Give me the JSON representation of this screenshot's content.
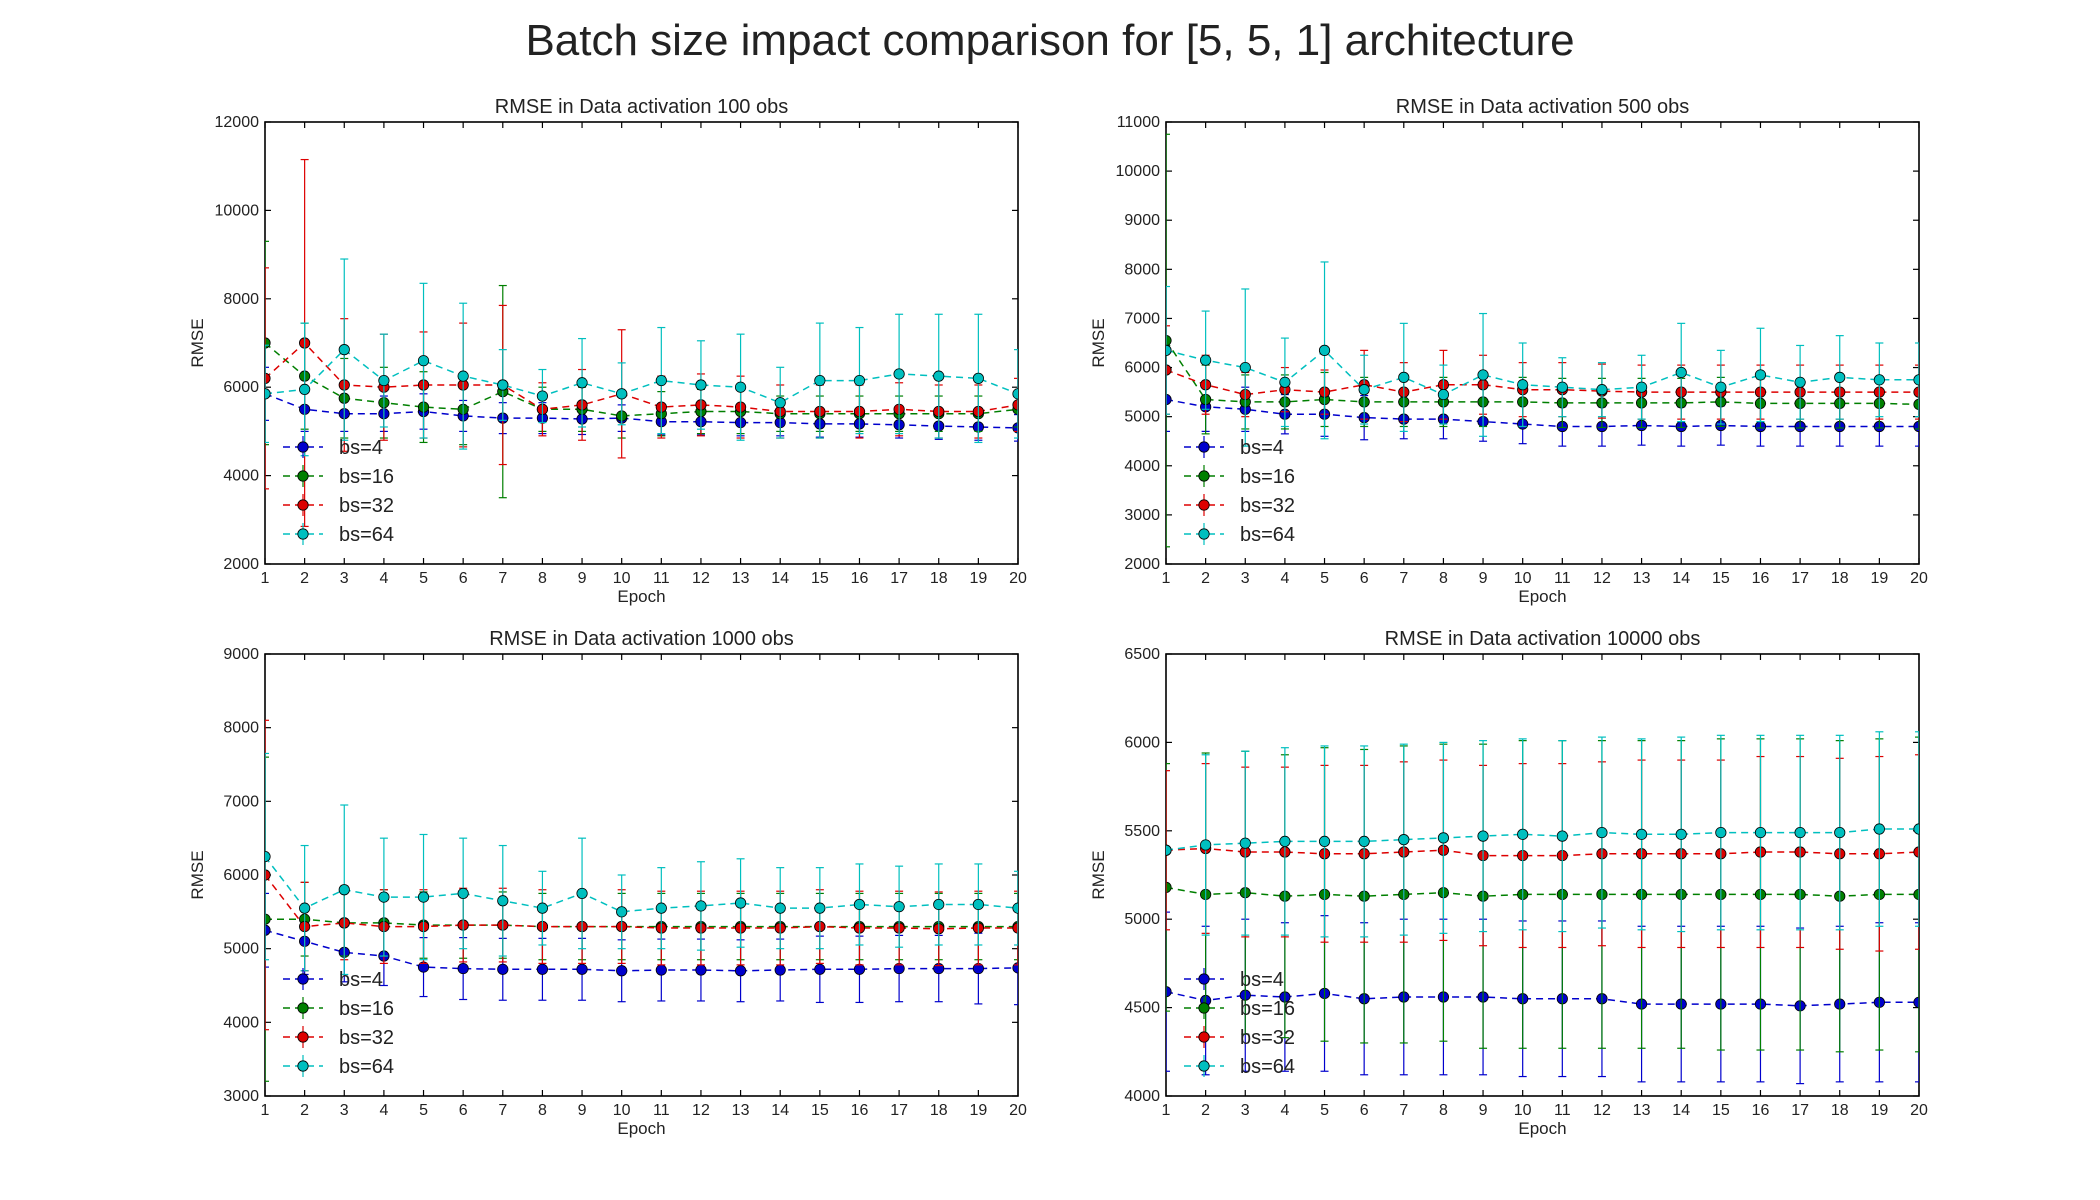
{
  "figure": {
    "title": "Batch size impact comparison for [5, 5, 1] architecture"
  },
  "series_styles": [
    {
      "name": "bs=4",
      "color": "#0000cc"
    },
    {
      "name": "bs=16",
      "color": "#007f00"
    },
    {
      "name": "bs=32",
      "color": "#dd0000"
    },
    {
      "name": "bs=64",
      "color": "#00bfbf"
    }
  ],
  "chart_data": [
    {
      "type": "line",
      "title": "RMSE in Data activation 100 obs",
      "xlabel": "Epoch",
      "ylabel": "RMSE",
      "x": [
        1,
        2,
        3,
        4,
        5,
        6,
        7,
        8,
        9,
        10,
        11,
        12,
        13,
        14,
        15,
        16,
        17,
        18,
        19,
        20
      ],
      "xlim": [
        1,
        20
      ],
      "ylim": [
        2000,
        12000
      ],
      "yticks": [
        2000,
        4000,
        6000,
        8000,
        10000,
        12000
      ],
      "grid": false,
      "legend_position": "lower-left",
      "series": [
        {
          "name": "bs=4",
          "values": [
            5850,
            5500,
            5400,
            5400,
            5450,
            5350,
            5300,
            5300,
            5280,
            5300,
            5220,
            5220,
            5200,
            5200,
            5170,
            5170,
            5150,
            5120,
            5100,
            5080
          ],
          "errors": [
            600,
            500,
            400,
            400,
            400,
            350,
            350,
            350,
            350,
            300,
            300,
            300,
            300,
            300,
            300,
            300,
            300,
            300,
            300,
            300
          ]
        },
        {
          "name": "bs=16",
          "values": [
            7000,
            6250,
            5750,
            5650,
            5550,
            5500,
            5900,
            5500,
            5500,
            5350,
            5400,
            5450,
            5450,
            5400,
            5400,
            5400,
            5400,
            5400,
            5400,
            5500
          ],
          "errors": [
            2300,
            1200,
            900,
            800,
            800,
            800,
            2400,
            500,
            500,
            500,
            500,
            500,
            500,
            400,
            400,
            400,
            400,
            400,
            400,
            400
          ]
        },
        {
          "name": "bs=32",
          "values": [
            6200,
            7000,
            6050,
            6000,
            6050,
            6050,
            6050,
            5500,
            5600,
            5850,
            5550,
            5600,
            5550,
            5450,
            5450,
            5450,
            5500,
            5450,
            5450,
            5600
          ],
          "errors": [
            2500,
            4150,
            1500,
            1200,
            1200,
            1400,
            1800,
            600,
            800,
            1450,
            700,
            700,
            700,
            600,
            600,
            600,
            600,
            600,
            600,
            600
          ]
        },
        {
          "name": "bs=64",
          "values": [
            5850,
            5950,
            6850,
            6150,
            6600,
            6250,
            6050,
            5800,
            6100,
            5850,
            6150,
            6050,
            6000,
            5650,
            6150,
            6150,
            6300,
            6250,
            6200,
            5850
          ],
          "errors": [
            1100,
            1500,
            2050,
            1050,
            1750,
            1650,
            800,
            600,
            1000,
            700,
            1200,
            1000,
            1200,
            800,
            1300,
            1200,
            1350,
            1400,
            1450,
            1000
          ]
        }
      ]
    },
    {
      "type": "line",
      "title": "RMSE in Data activation 500 obs",
      "xlabel": "Epoch",
      "ylabel": "RMSE",
      "x": [
        1,
        2,
        3,
        4,
        5,
        6,
        7,
        8,
        9,
        10,
        11,
        12,
        13,
        14,
        15,
        16,
        17,
        18,
        19,
        20
      ],
      "xlim": [
        1,
        20
      ],
      "ylim": [
        2000,
        11000
      ],
      "yticks": [
        2000,
        3000,
        4000,
        5000,
        6000,
        7000,
        8000,
        9000,
        10000,
        11000
      ],
      "grid": false,
      "legend_position": "lower-left",
      "series": [
        {
          "name": "bs=4",
          "values": [
            5350,
            5200,
            5150,
            5050,
            5050,
            4980,
            4950,
            4950,
            4900,
            4850,
            4800,
            4800,
            4820,
            4800,
            4820,
            4800,
            4800,
            4800,
            4800,
            4800
          ],
          "errors": [
            650,
            500,
            450,
            400,
            450,
            450,
            400,
            400,
            400,
            400,
            400,
            400,
            400,
            400,
            400,
            400,
            400,
            400,
            400,
            400
          ]
        },
        {
          "name": "bs=16",
          "values": [
            6550,
            5350,
            5300,
            5300,
            5350,
            5300,
            5300,
            5300,
            5300,
            5300,
            5280,
            5280,
            5280,
            5280,
            5300,
            5270,
            5270,
            5270,
            5270,
            5250
          ],
          "errors": [
            4200,
            700,
            550,
            550,
            550,
            500,
            500,
            500,
            500,
            500,
            500,
            500,
            500,
            500,
            500,
            500,
            500,
            500,
            500,
            500
          ]
        },
        {
          "name": "bs=32",
          "values": [
            5950,
            5650,
            5450,
            5550,
            5500,
            5650,
            5500,
            5650,
            5650,
            5550,
            5550,
            5520,
            5500,
            5500,
            5500,
            5500,
            5500,
            5500,
            5500,
            5500
          ],
          "errors": [
            900,
            600,
            450,
            450,
            450,
            700,
            600,
            700,
            600,
            550,
            550,
            550,
            550,
            550,
            550,
            550,
            550,
            550,
            550,
            550
          ]
        },
        {
          "name": "bs=64",
          "values": [
            6350,
            6150,
            6000,
            5700,
            6350,
            5550,
            5800,
            5450,
            5850,
            5650,
            5600,
            5550,
            5600,
            5900,
            5600,
            5850,
            5700,
            5800,
            5750,
            5750
          ],
          "errors": [
            1300,
            1000,
            1600,
            900,
            1800,
            700,
            1100,
            600,
            1250,
            850,
            600,
            550,
            650,
            1000,
            750,
            950,
            750,
            850,
            750,
            750
          ]
        }
      ]
    },
    {
      "type": "line",
      "title": "RMSE in Data activation 1000 obs",
      "xlabel": "Epoch",
      "ylabel": "RMSE",
      "x": [
        1,
        2,
        3,
        4,
        5,
        6,
        7,
        8,
        9,
        10,
        11,
        12,
        13,
        14,
        15,
        16,
        17,
        18,
        19,
        20
      ],
      "xlim": [
        1,
        20
      ],
      "ylim": [
        3000,
        9000
      ],
      "yticks": [
        3000,
        4000,
        5000,
        6000,
        7000,
        8000,
        9000
      ],
      "grid": false,
      "legend_position": "lower-left",
      "series": [
        {
          "name": "bs=4",
          "values": [
            5250,
            5100,
            4950,
            4900,
            4750,
            4730,
            4720,
            4720,
            4720,
            4700,
            4710,
            4710,
            4700,
            4710,
            4720,
            4720,
            4730,
            4730,
            4730,
            4740
          ],
          "errors": [
            500,
            450,
            400,
            400,
            400,
            420,
            420,
            420,
            420,
            420,
            420,
            420,
            420,
            420,
            450,
            450,
            450,
            450,
            480,
            500
          ]
        },
        {
          "name": "bs=16",
          "values": [
            5400,
            5400,
            5350,
            5350,
            5320,
            5320,
            5320,
            5300,
            5300,
            5300,
            5300,
            5300,
            5300,
            5300,
            5300,
            5300,
            5300,
            5300,
            5300,
            5300
          ],
          "errors": [
            2200,
            500,
            450,
            450,
            450,
            450,
            450,
            450,
            450,
            450,
            450,
            450,
            450,
            450,
            450,
            450,
            450,
            450,
            450,
            450
          ]
        },
        {
          "name": "bs=32",
          "values": [
            6000,
            5300,
            5350,
            5300,
            5300,
            5320,
            5320,
            5300,
            5300,
            5300,
            5280,
            5280,
            5280,
            5280,
            5300,
            5280,
            5280,
            5270,
            5280,
            5280
          ],
          "errors": [
            2100,
            600,
            500,
            500,
            500,
            500,
            500,
            500,
            500,
            500,
            500,
            500,
            500,
            500,
            500,
            500,
            500,
            500,
            500,
            500
          ]
        },
        {
          "name": "bs=64",
          "values": [
            6250,
            5550,
            5800,
            5700,
            5700,
            5750,
            5650,
            5550,
            5750,
            5500,
            5550,
            5580,
            5620,
            5550,
            5550,
            5600,
            5570,
            5600,
            5600,
            5550
          ],
          "errors": [
            1400,
            850,
            1150,
            800,
            850,
            750,
            750,
            500,
            750,
            500,
            550,
            600,
            600,
            550,
            550,
            550,
            550,
            550,
            550,
            500
          ]
        }
      ]
    },
    {
      "type": "line",
      "title": "RMSE in Data activation 10000 obs",
      "xlabel": "Epoch",
      "ylabel": "RMSE",
      "x": [
        1,
        2,
        3,
        4,
        5,
        6,
        7,
        8,
        9,
        10,
        11,
        12,
        13,
        14,
        15,
        16,
        17,
        18,
        19,
        20
      ],
      "xlim": [
        1,
        20
      ],
      "ylim": [
        4000,
        6500
      ],
      "yticks": [
        4000,
        4500,
        5000,
        5500,
        6000,
        6500
      ],
      "grid": false,
      "legend_position": "lower-left",
      "series": [
        {
          "name": "bs=4",
          "values": [
            4590,
            4540,
            4570,
            4560,
            4580,
            4550,
            4560,
            4560,
            4560,
            4550,
            4550,
            4550,
            4520,
            4520,
            4520,
            4520,
            4510,
            4520,
            4530,
            4530
          ],
          "errors": [
            450,
            420,
            430,
            420,
            440,
            430,
            440,
            440,
            440,
            440,
            440,
            440,
            440,
            440,
            440,
            440,
            440,
            440,
            450,
            450
          ]
        },
        {
          "name": "bs=16",
          "values": [
            5180,
            5140,
            5150,
            5130,
            5140,
            5130,
            5140,
            5150,
            5130,
            5140,
            5140,
            5140,
            5140,
            5140,
            5140,
            5140,
            5140,
            5130,
            5140,
            5140
          ],
          "errors": [
            700,
            800,
            800,
            800,
            830,
            830,
            840,
            840,
            860,
            870,
            870,
            870,
            870,
            870,
            880,
            880,
            880,
            880,
            880,
            890
          ]
        },
        {
          "name": "bs=32",
          "values": [
            5390,
            5400,
            5380,
            5380,
            5370,
            5370,
            5380,
            5390,
            5360,
            5360,
            5360,
            5370,
            5370,
            5370,
            5370,
            5380,
            5380,
            5370,
            5370,
            5380
          ],
          "errors": [
            450,
            480,
            480,
            480,
            500,
            500,
            510,
            510,
            510,
            520,
            520,
            520,
            530,
            530,
            530,
            540,
            540,
            540,
            550,
            550
          ]
        },
        {
          "name": "bs=64",
          "values": [
            5390,
            5420,
            5430,
            5440,
            5440,
            5440,
            5450,
            5460,
            5470,
            5480,
            5470,
            5490,
            5480,
            5480,
            5490,
            5490,
            5490,
            5490,
            5510,
            5510
          ],
          "errors": [
            0,
            510,
            520,
            530,
            540,
            540,
            540,
            540,
            540,
            540,
            540,
            540,
            540,
            550,
            550,
            550,
            550,
            550,
            550,
            550
          ]
        }
      ]
    }
  ]
}
